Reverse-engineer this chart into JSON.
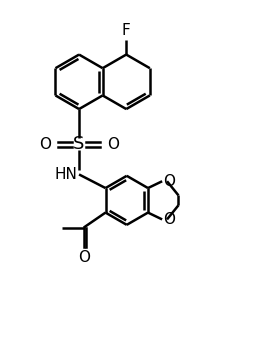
{
  "background_color": "#ffffff",
  "line_color": "#000000",
  "line_width": 1.8,
  "font_size": 10,
  "figsize": [
    2.78,
    3.38
  ],
  "dpi": 100,
  "xlim": [
    0,
    10
  ],
  "ylim": [
    0,
    12
  ]
}
